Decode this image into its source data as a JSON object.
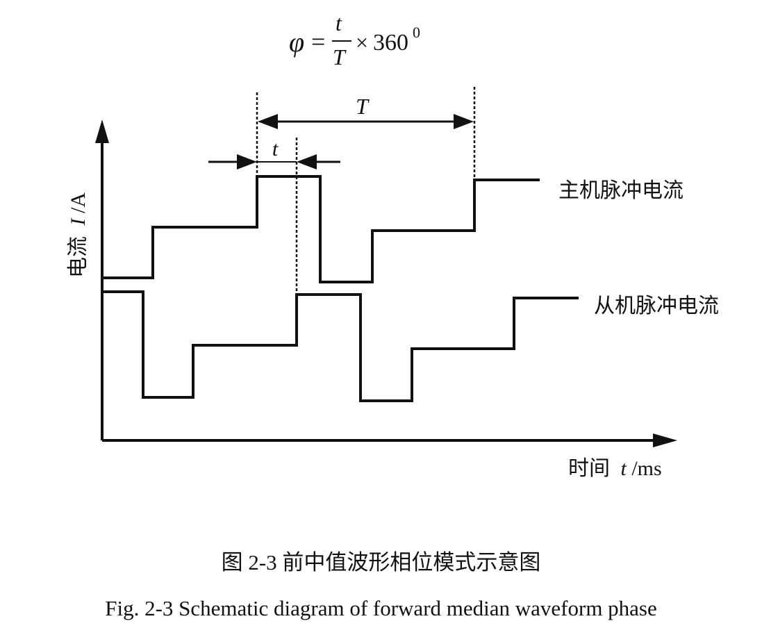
{
  "formula": {
    "lhs": "φ",
    "equals": "=",
    "numerator": "t",
    "denominator": "T",
    "times": "×",
    "value": "360",
    "superscript": "0"
  },
  "labels": {
    "period": "T",
    "offset": "t",
    "y_axis_name": "电流",
    "y_axis_var": "I",
    "y_axis_unit": "/A",
    "x_axis_name": "时间",
    "x_axis_var": "t",
    "x_axis_unit": "/ms",
    "master_label": "主机脉冲电流",
    "slave_label": "从机脉冲电流"
  },
  "caption": {
    "zh": "图 2-3  前中值波形相位模式示意图",
    "en": "Fig. 2-3 Schematic diagram of forward median waveform phase"
  }
}
